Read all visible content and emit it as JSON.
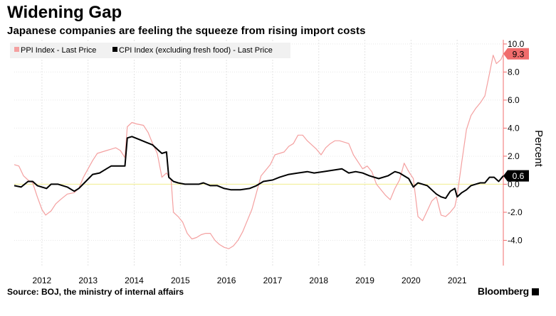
{
  "header": {
    "title": "Widening Gap",
    "subtitle": "Japanese companies are feeling the squeeze from rising import costs"
  },
  "footer": {
    "source": "Source: BOJ, the ministry of internal affairs",
    "brand": "Bloomberg"
  },
  "chart_data": {
    "type": "line",
    "ylabel": "Percent",
    "ylim": [
      -5.8,
      10.3
    ],
    "y_ticks": [
      "10.0",
      "8.0",
      "6.0",
      "4.0",
      "2.0",
      "0.0",
      "-2.0",
      "-4.0"
    ],
    "y_tick_values": [
      10,
      8,
      6,
      4,
      2,
      0,
      -2,
      -4
    ],
    "x_range": [
      2011.4,
      2022.0
    ],
    "x_ticks": [
      "2012",
      "2013",
      "2014",
      "2015",
      "2016",
      "2017",
      "2018",
      "2019",
      "2020",
      "2021"
    ],
    "x_tick_values": [
      2012,
      2013,
      2014,
      2015,
      2016,
      2017,
      2018,
      2019,
      2020,
      2021
    ],
    "legend_position": "top-left",
    "grid": true,
    "series": [
      {
        "name": "PPI Index - Last Price",
        "color": "#f4a0a0",
        "last_label": "9.3",
        "last_color": "#f06c6c",
        "points": [
          [
            2011.4,
            1.4
          ],
          [
            2011.5,
            1.3
          ],
          [
            2011.6,
            0.6
          ],
          [
            2011.7,
            0.3
          ],
          [
            2011.8,
            0.1
          ],
          [
            2011.9,
            -0.9
          ],
          [
            2012.0,
            -1.8
          ],
          [
            2012.08,
            -2.2
          ],
          [
            2012.2,
            -1.9
          ],
          [
            2012.3,
            -1.4
          ],
          [
            2012.4,
            -1.1
          ],
          [
            2012.55,
            -0.7
          ],
          [
            2012.7,
            -0.6
          ],
          [
            2012.8,
            -0.3
          ],
          [
            2012.9,
            0.5
          ],
          [
            2013.0,
            1.1
          ],
          [
            2013.1,
            1.7
          ],
          [
            2013.2,
            2.2
          ],
          [
            2013.3,
            2.3
          ],
          [
            2013.4,
            2.4
          ],
          [
            2013.5,
            2.5
          ],
          [
            2013.6,
            2.6
          ],
          [
            2013.7,
            2.4
          ],
          [
            2013.8,
            1.9
          ],
          [
            2013.85,
            4.1
          ],
          [
            2013.95,
            4.4
          ],
          [
            2014.05,
            4.3
          ],
          [
            2014.2,
            4.2
          ],
          [
            2014.3,
            3.7
          ],
          [
            2014.4,
            2.9
          ],
          [
            2014.5,
            2.2
          ],
          [
            2014.6,
            0.5
          ],
          [
            2014.7,
            0.8
          ],
          [
            2014.8,
            0.3
          ],
          [
            2014.85,
            -2.0
          ],
          [
            2014.95,
            -2.3
          ],
          [
            2015.05,
            -2.7
          ],
          [
            2015.15,
            -3.5
          ],
          [
            2015.25,
            -3.9
          ],
          [
            2015.35,
            -3.8
          ],
          [
            2015.45,
            -3.6
          ],
          [
            2015.55,
            -3.5
          ],
          [
            2015.65,
            -3.5
          ],
          [
            2015.75,
            -4.0
          ],
          [
            2015.85,
            -4.3
          ],
          [
            2015.95,
            -4.5
          ],
          [
            2016.05,
            -4.6
          ],
          [
            2016.15,
            -4.4
          ],
          [
            2016.25,
            -4.0
          ],
          [
            2016.35,
            -3.4
          ],
          [
            2016.45,
            -2.6
          ],
          [
            2016.55,
            -1.8
          ],
          [
            2016.65,
            -0.6
          ],
          [
            2016.75,
            0.6
          ],
          [
            2016.85,
            1.0
          ],
          [
            2016.95,
            1.4
          ],
          [
            2017.05,
            2.1
          ],
          [
            2017.15,
            2.2
          ],
          [
            2017.25,
            2.3
          ],
          [
            2017.35,
            2.7
          ],
          [
            2017.45,
            2.9
          ],
          [
            2017.55,
            3.5
          ],
          [
            2017.65,
            3.5
          ],
          [
            2017.75,
            3.1
          ],
          [
            2017.85,
            2.8
          ],
          [
            2017.95,
            2.5
          ],
          [
            2018.05,
            2.1
          ],
          [
            2018.15,
            2.6
          ],
          [
            2018.25,
            2.9
          ],
          [
            2018.35,
            3.1
          ],
          [
            2018.45,
            3.1
          ],
          [
            2018.55,
            3.0
          ],
          [
            2018.65,
            2.9
          ],
          [
            2018.75,
            2.1
          ],
          [
            2018.85,
            1.6
          ],
          [
            2018.95,
            1.1
          ],
          [
            2019.05,
            1.3
          ],
          [
            2019.15,
            0.9
          ],
          [
            2019.25,
            0.0
          ],
          [
            2019.35,
            -0.4
          ],
          [
            2019.45,
            -0.8
          ],
          [
            2019.55,
            -1.1
          ],
          [
            2019.65,
            -0.3
          ],
          [
            2019.75,
            0.3
          ],
          [
            2019.85,
            1.5
          ],
          [
            2019.95,
            0.9
          ],
          [
            2020.05,
            0.4
          ],
          [
            2020.15,
            -2.3
          ],
          [
            2020.25,
            -2.6
          ],
          [
            2020.35,
            -1.9
          ],
          [
            2020.45,
            -1.2
          ],
          [
            2020.55,
            -0.9
          ],
          [
            2020.65,
            -2.2
          ],
          [
            2020.75,
            -2.3
          ],
          [
            2020.85,
            -2.0
          ],
          [
            2020.95,
            -1.6
          ],
          [
            2021.0,
            -0.8
          ],
          [
            2021.1,
            1.6
          ],
          [
            2021.2,
            3.9
          ],
          [
            2021.3,
            4.9
          ],
          [
            2021.4,
            5.4
          ],
          [
            2021.5,
            5.8
          ],
          [
            2021.6,
            6.3
          ],
          [
            2021.7,
            7.9
          ],
          [
            2021.78,
            9.2
          ],
          [
            2021.85,
            8.6
          ],
          [
            2021.95,
            8.9
          ],
          [
            2022.0,
            9.3
          ]
        ]
      },
      {
        "name": "CPI Index (excluding fresh food) - Last Price",
        "color": "#000000",
        "last_label": "0.6",
        "last_color": "#000000",
        "points": [
          [
            2011.4,
            -0.1
          ],
          [
            2011.55,
            -0.2
          ],
          [
            2011.7,
            0.2
          ],
          [
            2011.8,
            0.2
          ],
          [
            2011.9,
            -0.1
          ],
          [
            2012.0,
            -0.2
          ],
          [
            2012.1,
            -0.3
          ],
          [
            2012.2,
            0.0
          ],
          [
            2012.35,
            0.0
          ],
          [
            2012.55,
            -0.2
          ],
          [
            2012.7,
            -0.5
          ],
          [
            2012.8,
            -0.3
          ],
          [
            2012.95,
            0.2
          ],
          [
            2013.1,
            0.7
          ],
          [
            2013.25,
            0.8
          ],
          [
            2013.4,
            1.1
          ],
          [
            2013.5,
            1.3
          ],
          [
            2013.65,
            1.3
          ],
          [
            2013.8,
            1.3
          ],
          [
            2013.85,
            3.3
          ],
          [
            2013.95,
            3.4
          ],
          [
            2014.1,
            3.2
          ],
          [
            2014.25,
            3.0
          ],
          [
            2014.4,
            2.8
          ],
          [
            2014.5,
            2.5
          ],
          [
            2014.6,
            2.2
          ],
          [
            2014.7,
            2.3
          ],
          [
            2014.75,
            0.5
          ],
          [
            2014.85,
            0.2
          ],
          [
            2014.95,
            0.1
          ],
          [
            2015.1,
            0.0
          ],
          [
            2015.25,
            0.0
          ],
          [
            2015.4,
            0.0
          ],
          [
            2015.5,
            0.1
          ],
          [
            2015.65,
            -0.1
          ],
          [
            2015.8,
            -0.1
          ],
          [
            2015.95,
            -0.3
          ],
          [
            2016.1,
            -0.4
          ],
          [
            2016.3,
            -0.4
          ],
          [
            2016.5,
            -0.3
          ],
          [
            2016.65,
            -0.1
          ],
          [
            2016.8,
            0.2
          ],
          [
            2017.0,
            0.3
          ],
          [
            2017.15,
            0.5
          ],
          [
            2017.35,
            0.7
          ],
          [
            2017.55,
            0.8
          ],
          [
            2017.75,
            0.9
          ],
          [
            2017.9,
            0.8
          ],
          [
            2018.1,
            0.9
          ],
          [
            2018.3,
            1.0
          ],
          [
            2018.5,
            1.1
          ],
          [
            2018.65,
            0.8
          ],
          [
            2018.8,
            0.9
          ],
          [
            2018.95,
            0.8
          ],
          [
            2019.1,
            0.6
          ],
          [
            2019.3,
            0.4
          ],
          [
            2019.5,
            0.6
          ],
          [
            2019.65,
            0.9
          ],
          [
            2019.75,
            0.8
          ],
          [
            2019.85,
            0.6
          ],
          [
            2019.95,
            0.4
          ],
          [
            2020.05,
            -0.2
          ],
          [
            2020.15,
            0.1
          ],
          [
            2020.25,
            0.0
          ],
          [
            2020.35,
            -0.1
          ],
          [
            2020.45,
            -0.4
          ],
          [
            2020.55,
            -0.7
          ],
          [
            2020.65,
            -0.9
          ],
          [
            2020.75,
            -1.0
          ],
          [
            2020.85,
            -0.5
          ],
          [
            2020.95,
            -0.3
          ],
          [
            2021.0,
            -0.9
          ],
          [
            2021.1,
            -0.6
          ],
          [
            2021.2,
            -0.4
          ],
          [
            2021.3,
            -0.1
          ],
          [
            2021.4,
            0.0
          ],
          [
            2021.5,
            0.1
          ],
          [
            2021.6,
            0.1
          ],
          [
            2021.7,
            0.5
          ],
          [
            2021.8,
            0.5
          ],
          [
            2021.9,
            0.2
          ],
          [
            2022.0,
            0.6
          ]
        ]
      }
    ]
  }
}
